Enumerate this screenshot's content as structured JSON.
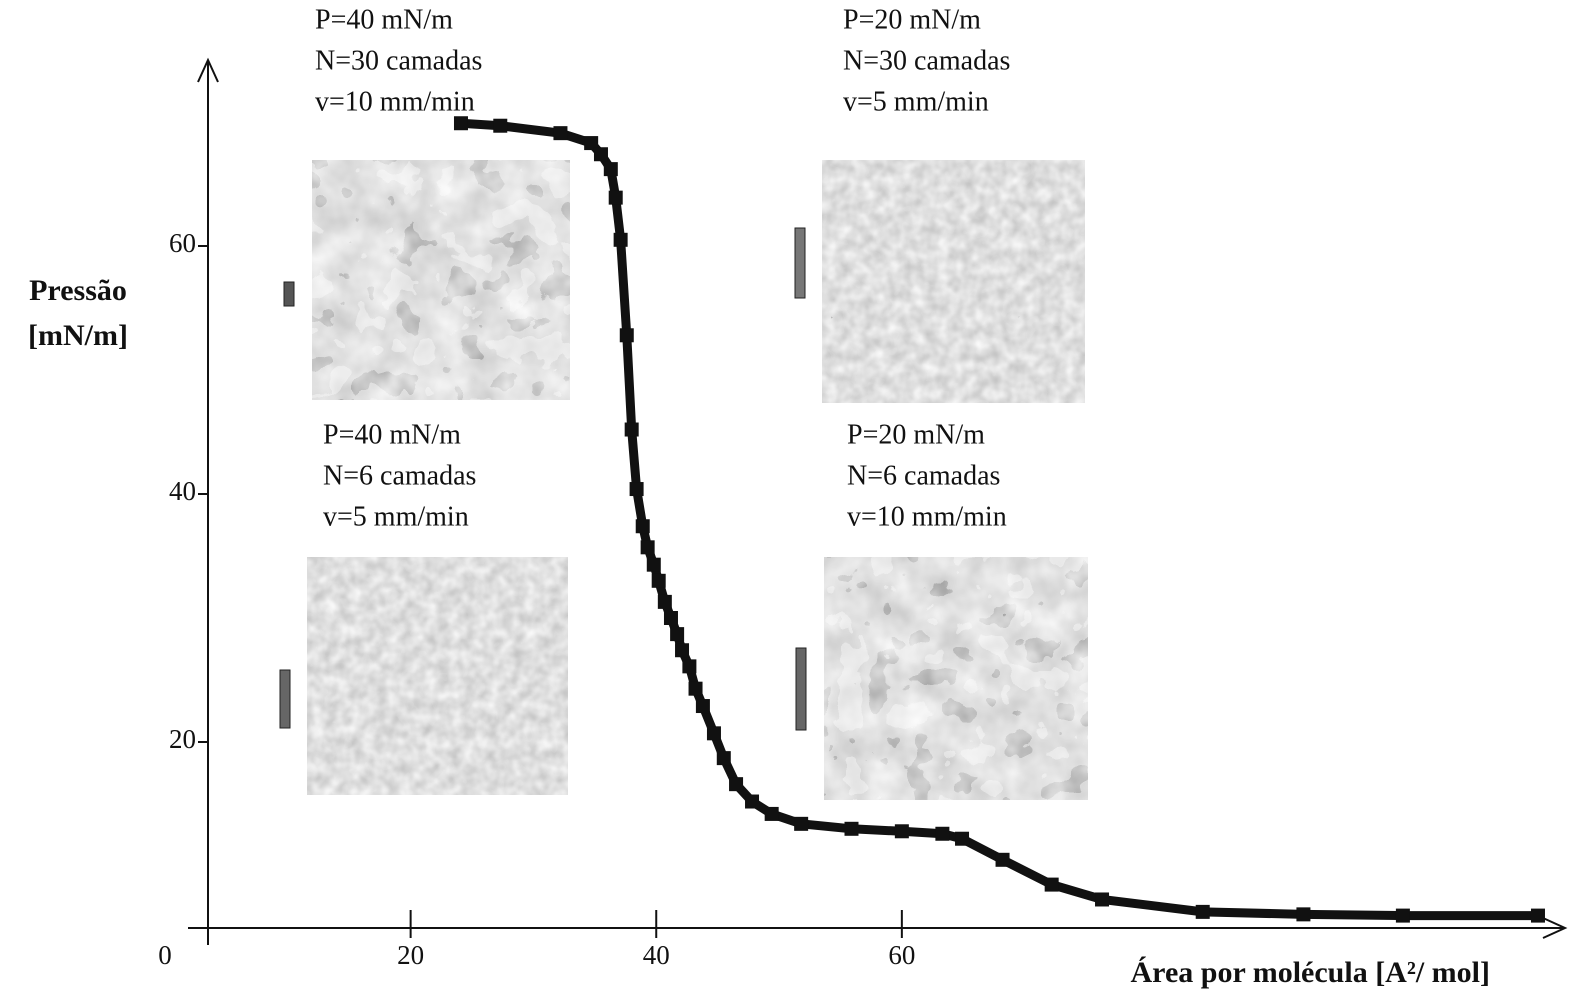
{
  "chart_data": {
    "type": "scatter",
    "ylabel": [
      "Pressão",
      "[mN/m]"
    ],
    "xlabel": "Área por molécula  [A²/ mol]",
    "x": [
      24.1,
      27.3,
      32.2,
      34.7,
      35.5,
      36.3,
      36.7,
      37.1,
      37.6,
      38.0,
      38.4,
      38.9,
      39.3,
      39.8,
      40.2,
      40.7,
      41.2,
      41.7,
      42.1,
      42.7,
      43.2,
      43.8,
      44.7,
      45.5,
      46.5,
      47.8,
      49.4,
      51.8,
      55.9,
      60.0,
      63.3,
      64.9,
      68.2,
      72.2,
      76.3,
      84.5,
      92.7,
      100.8,
      111.8
    ],
    "values": [
      69.9,
      69.7,
      69.1,
      68.3,
      67.4,
      66.2,
      63.9,
      60.5,
      52.8,
      45.2,
      40.4,
      37.4,
      35.7,
      34.3,
      33.0,
      31.3,
      30.0,
      28.7,
      27.4,
      26.1,
      24.3,
      22.9,
      20.7,
      18.7,
      16.6,
      15.2,
      14.2,
      13.4,
      13.0,
      12.8,
      12.6,
      12.2,
      10.5,
      8.5,
      7.3,
      6.3,
      6.1,
      6.0,
      6.0
    ],
    "color": "#111111",
    "xlim": [
      3.5,
      114
    ],
    "xticks": [
      0,
      20,
      40,
      60
    ],
    "ylim": [
      5,
      75
    ],
    "yticks": [
      20,
      40,
      60
    ],
    "annotations": [
      [
        "P=40 mN/m",
        "N=30 camadas",
        "v=10 mm/min"
      ],
      [
        "P=20 mN/m",
        "N=30 camadas",
        "v=5 mm/min"
      ],
      [
        "P=40 mN/m",
        "N=6 camadas",
        "v=5 mm/min"
      ],
      [
        "P=20 mN/m",
        "N=6 camadas",
        "v=10 mm/min"
      ]
    ]
  }
}
